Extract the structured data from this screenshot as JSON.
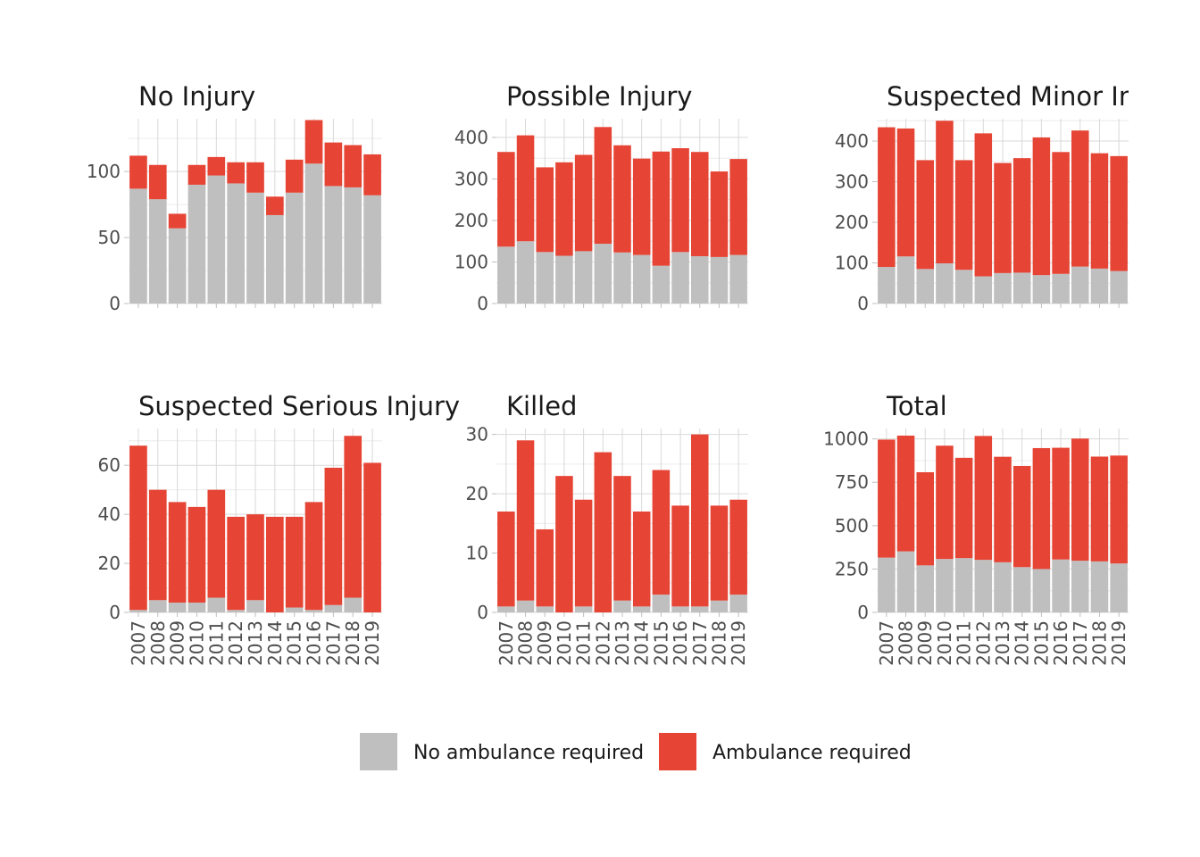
{
  "chart_data": {
    "type": "bar",
    "stacked": true,
    "layout": "facet-grid 2x3",
    "colors": {
      "No ambulance required": "#bfbfbf",
      "Ambulance required": "#e64434",
      "grid": "#d9d9d9"
    },
    "legend": {
      "position": "bottom",
      "entries": [
        "No ambulance required",
        "Ambulance required"
      ]
    },
    "categories": [
      "2007",
      "2008",
      "2009",
      "2010",
      "2011",
      "2012",
      "2013",
      "2014",
      "2015",
      "2016",
      "2017",
      "2018",
      "2019"
    ],
    "panels": [
      {
        "title": "No Injury",
        "ylim": [
          0,
          140
        ],
        "yticks": [
          0,
          50,
          100
        ],
        "series": [
          {
            "name": "No ambulance required",
            "values": [
              87,
              79,
              57,
              90,
              97,
              91,
              84,
              67,
              84,
              106,
              89,
              88,
              82
            ]
          },
          {
            "name": "Ambulance required",
            "values": [
              25,
              26,
              11,
              15,
              14,
              16,
              23,
              14,
              25,
              33,
              33,
              32,
              31
            ]
          }
        ]
      },
      {
        "title": "Possible Injury",
        "ylim": [
          0,
          445
        ],
        "yticks": [
          0,
          100,
          200,
          300,
          400
        ],
        "series": [
          {
            "name": "No ambulance required",
            "values": [
              137,
              150,
              124,
              115,
              126,
              144,
              123,
              117,
              91,
              124,
              114,
              112,
              117
            ]
          },
          {
            "name": "Ambulance required",
            "values": [
              228,
              255,
              204,
              225,
              232,
              281,
              258,
              232,
              275,
              250,
              251,
              206,
              231
            ]
          }
        ]
      },
      {
        "title": "Suspected Minor Injury",
        "ylim": [
          0,
          455
        ],
        "yticks": [
          0,
          100,
          200,
          300,
          400
        ],
        "series": [
          {
            "name": "No ambulance required",
            "values": [
              90,
              116,
              85,
              99,
              83,
              67,
              75,
              76,
              70,
              73,
              91,
              86,
              80
            ]
          },
          {
            "name": "Ambulance required",
            "values": [
              344,
              315,
              268,
              351,
              270,
              352,
              271,
              282,
              339,
              300,
              335,
              284,
              283
            ]
          }
        ]
      },
      {
        "title": "Suspected Serious Injury",
        "ylim": [
          0,
          75
        ],
        "yticks": [
          0,
          20,
          40,
          60
        ],
        "series": [
          {
            "name": "No ambulance required",
            "values": [
              1,
              5,
              4,
              4,
              6,
              1,
              5,
              0,
              2,
              1,
              3,
              6,
              0
            ]
          },
          {
            "name": "Ambulance required",
            "values": [
              67,
              45,
              41,
              39,
              44,
              38,
              35,
              39,
              37,
              44,
              56,
              66,
              61
            ]
          }
        ]
      },
      {
        "title": "Killed",
        "ylim": [
          0,
          31
        ],
        "yticks": [
          0,
          10,
          20,
          30
        ],
        "series": [
          {
            "name": "No ambulance required",
            "values": [
              1,
              2,
              1,
              0,
              1,
              0,
              2,
              1,
              3,
              1,
              1,
              2,
              3
            ]
          },
          {
            "name": "Ambulance required",
            "values": [
              16,
              27,
              13,
              23,
              18,
              27,
              21,
              16,
              21,
              17,
              29,
              16,
              16
            ]
          }
        ]
      },
      {
        "title": "Total",
        "ylim": [
          0,
          1060
        ],
        "yticks": [
          0,
          250,
          500,
          750,
          1000
        ],
        "series": [
          {
            "name": "No ambulance required",
            "values": [
              316,
              352,
              271,
              308,
              313,
              303,
              289,
              261,
              250,
              305,
              298,
              294,
              282
            ]
          },
          {
            "name": "Ambulance required",
            "values": [
              680,
              667,
              537,
              653,
              578,
              714,
              608,
              583,
              697,
              644,
              704,
              604,
              622
            ]
          }
        ]
      }
    ]
  }
}
